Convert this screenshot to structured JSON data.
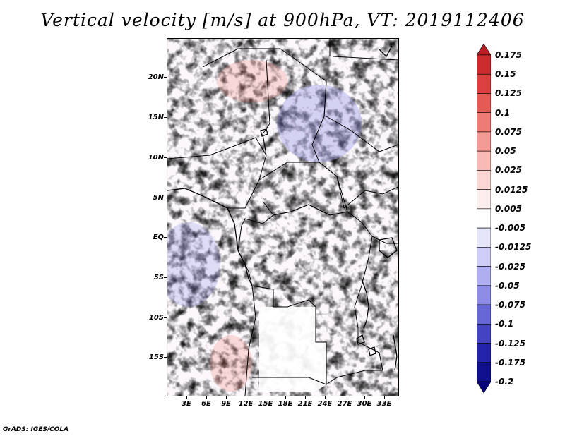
{
  "title": "Vertical velocity [m/s] at 900hPa, VT: 2019112406",
  "credit": "GrADS: IGES/COLA",
  "lat_labels": [
    "20N",
    "15N",
    "10N",
    "5N",
    "EQ",
    "5S",
    "10S",
    "15S"
  ],
  "lon_labels": [
    "3E",
    "6E",
    "9E",
    "12E",
    "15E",
    "18E",
    "21E",
    "24E",
    "27E",
    "30E",
    "33E"
  ],
  "colorbar": {
    "labels": [
      "0.175",
      "0.15",
      "0.125",
      "0.1",
      "0.075",
      "0.05",
      "0.025",
      "0.0125",
      "0.005",
      "-0.005",
      "-0.0125",
      "-0.025",
      "-0.05",
      "-0.075",
      "-0.1",
      "-0.125",
      "-0.175",
      "-0.2"
    ],
    "colors": [
      "#b41e24",
      "#cb2c2f",
      "#dc3f3f",
      "#e65a55",
      "#ee7b74",
      "#f39b94",
      "#f7bab4",
      "#fbd7d3",
      "#fdeeee",
      "#ffffff",
      "#e6e6fb",
      "#cdcdf7",
      "#aeaef0",
      "#8c8ce6",
      "#6767d8",
      "#4343c4",
      "#2424ab",
      "#10108f",
      "#06067a"
    ]
  },
  "legend_colors": {
    "frame": "#000000",
    "background": "#ffffff"
  }
}
